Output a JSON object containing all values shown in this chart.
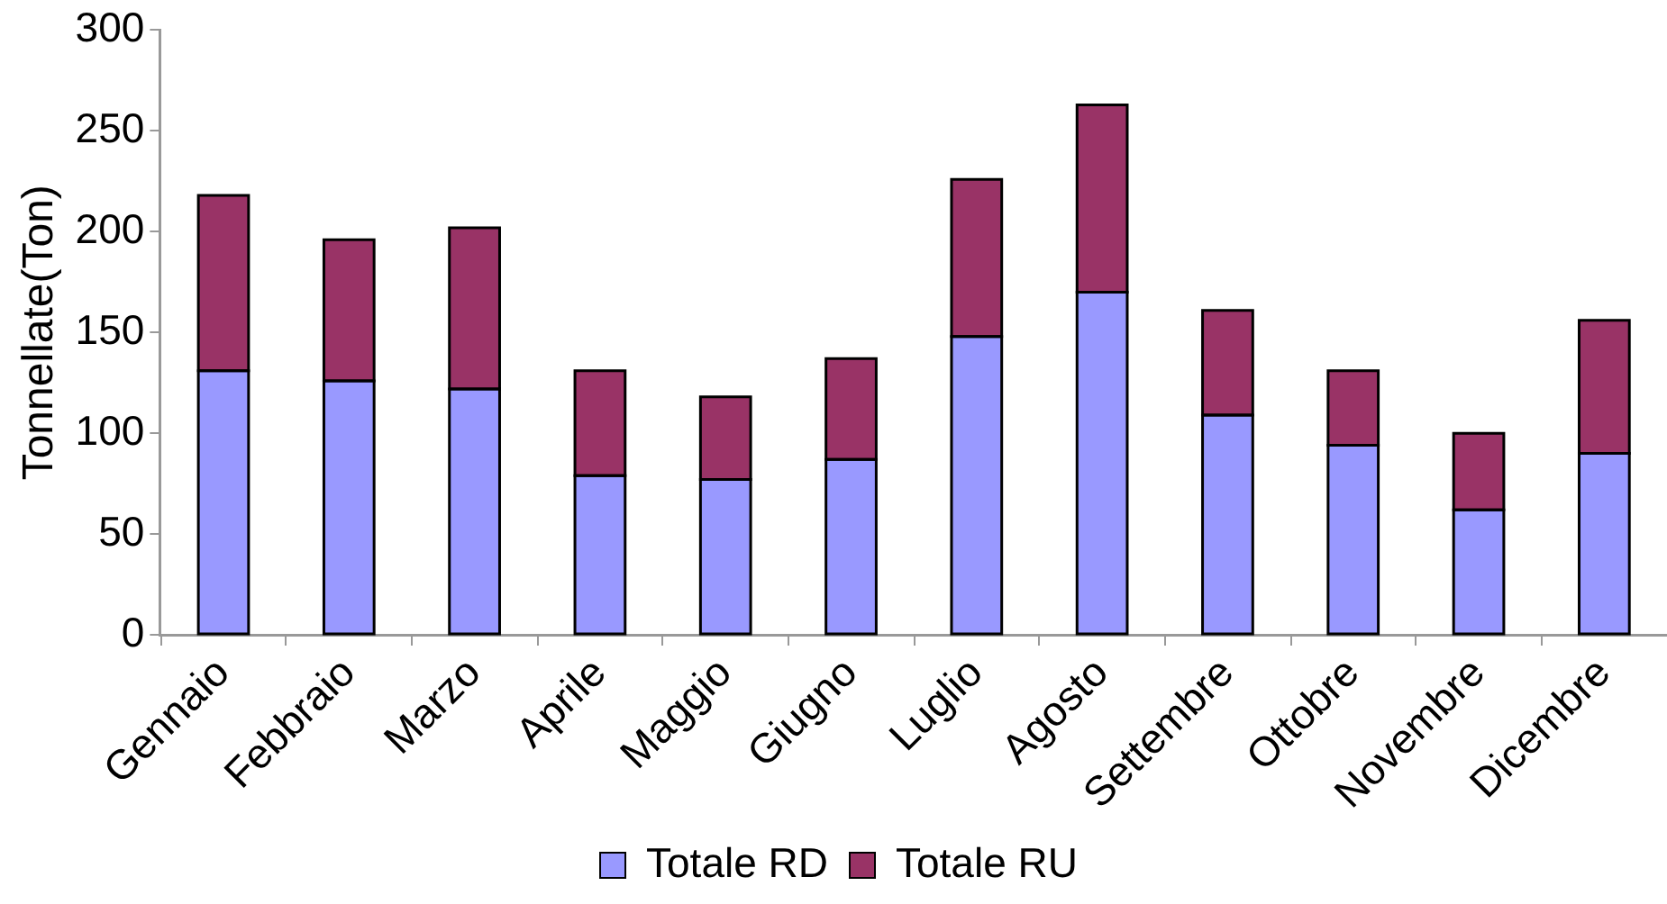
{
  "chart_data": {
    "type": "bar",
    "ylabel": "Tonnellate(Ton)",
    "categories": [
      "Gennaio",
      "Febbraio",
      "Marzo",
      "Aprile",
      "Maggio",
      "Giugno",
      "Luglio",
      "Agosto",
      "Settembre",
      "Ottobre",
      "Novembre",
      "Dicembre"
    ],
    "series": [
      {
        "name": "Totale RD",
        "color": "#9999ff",
        "values": [
          131,
          126,
          122,
          79,
          77,
          87,
          148,
          170,
          109,
          94,
          62,
          90
        ]
      },
      {
        "name": "Totale RU",
        "color": "#993366",
        "values": [
          87,
          70,
          80,
          52,
          41,
          50,
          78,
          93,
          52,
          37,
          38,
          66
        ]
      }
    ],
    "stacked": true,
    "ylim": [
      0,
      300
    ],
    "yticks": [
      0,
      50,
      100,
      150,
      200,
      250,
      300
    ],
    "grid": false,
    "legend": "bottom"
  }
}
